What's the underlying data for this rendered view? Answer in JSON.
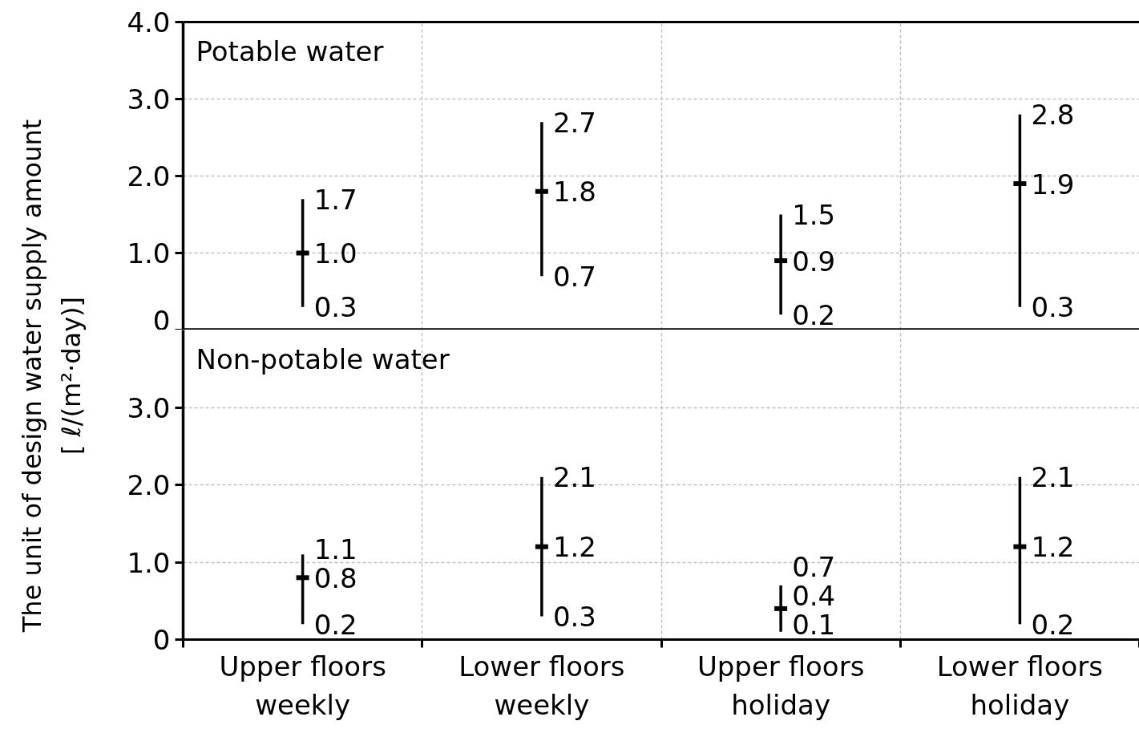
{
  "chart_data": [
    {
      "type": "scatter",
      "title": "Potable water",
      "ylabel": "The unit of design water supply amount\n[ ℓ/(m²·day)]",
      "categories": [
        "Upper floors weekly",
        "Lower floors weekly",
        "Upper floors holiday",
        "Lower floors holiday"
      ],
      "values": [
        1.0,
        1.8,
        0.9,
        1.9
      ],
      "errors": [
        [
          0.3,
          1.7
        ],
        [
          0.7,
          2.7
        ],
        [
          0.2,
          1.5
        ],
        [
          0.3,
          2.8
        ]
      ],
      "color": "#000000",
      "value_labels": [
        "1.0",
        "1.8",
        "0.9",
        "1.9"
      ],
      "annotations": [
        {
          "text": "1.7",
          "x": "Upper floors weekly",
          "y": 1.7
        },
        {
          "text": "0.3",
          "x": "Upper floors weekly",
          "y": 0.3
        },
        {
          "text": "2.7",
          "x": "Lower floors weekly",
          "y": 2.7
        },
        {
          "text": "0.7",
          "x": "Lower floors weekly",
          "y": 0.7
        },
        {
          "text": "1.5",
          "x": "Upper floors holiday",
          "y": 1.5
        },
        {
          "text": "0.2",
          "x": "Upper floors holiday",
          "y": 0.2
        },
        {
          "text": "2.8",
          "x": "Lower floors holiday",
          "y": 2.8
        },
        {
          "text": "0.3",
          "x": "Lower floors holiday",
          "y": 0.3
        }
      ],
      "ylim": [
        0,
        4
      ],
      "yticks": [
        0,
        {
          "value": 1,
          "label": "1.0"
        },
        {
          "value": 2,
          "label": "2.0"
        },
        {
          "value": 3,
          "label": "3.0"
        },
        {
          "value": 4,
          "label": "4.0"
        }
      ],
      "grid": true,
      "tick_labels": "y"
    },
    {
      "type": "scatter",
      "title": "Non-potable water",
      "categories": [
        "Upper floors weekly",
        "Lower floors weekly",
        "Upper floors holiday",
        "Lower floors holiday"
      ],
      "values": [
        0.8,
        1.2,
        0.4,
        1.2
      ],
      "errors": [
        [
          0.2,
          1.1
        ],
        [
          0.3,
          2.1
        ],
        [
          0.1,
          0.7
        ],
        [
          0.2,
          2.1
        ]
      ],
      "color": "#000000",
      "value_labels": [
        "0.8",
        "1.2",
        "0.4",
        "1.2"
      ],
      "annotations": [
        {
          "text": "1.1",
          "x": "Upper floors weekly",
          "y": 1.1
        },
        {
          "text": "0.2",
          "x": "Upper floors weekly",
          "y": 0.2
        },
        {
          "text": "2.1",
          "x": "Lower floors weekly",
          "y": 2.1
        },
        {
          "text": "0.3",
          "x": "Lower floors weekly",
          "y": 0.3
        },
        {
          "text": "0.7",
          "x": "Upper floors holiday",
          "y": 0.7
        },
        {
          "text": "0.1",
          "x": "Upper floors holiday",
          "y": 0.1
        },
        {
          "text": "2.1",
          "x": "Lower floors holiday",
          "y": 2.1
        },
        {
          "text": "0.2",
          "x": "Lower floors holiday",
          "y": 0.2
        }
      ],
      "ylim": [
        0,
        4
      ],
      "yticks": [
        0,
        {
          "value": 1,
          "label": "1.0"
        },
        {
          "value": 2,
          "label": "2.0"
        },
        {
          "value": 3,
          "label": "3.0"
        }
      ],
      "grid": true
    }
  ]
}
